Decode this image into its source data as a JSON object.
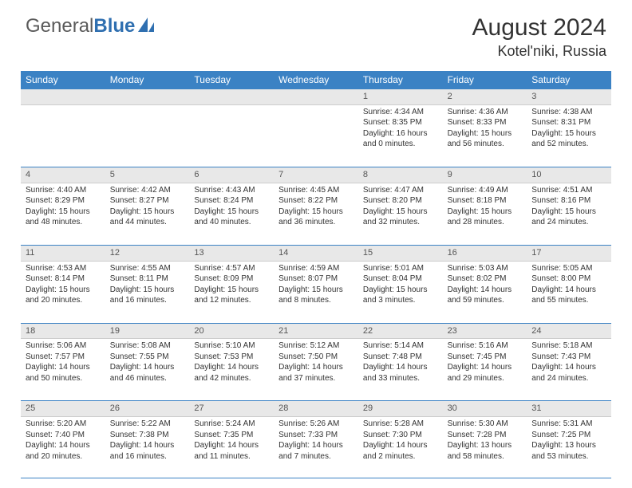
{
  "logo": {
    "general": "General",
    "blue": "Blue"
  },
  "title": "August 2024",
  "location": "Kotel'niki, Russia",
  "colors": {
    "header_bg": "#3b82c4",
    "daynum_bg": "#e8e8e8",
    "rule": "#3b82c4",
    "text": "#333333"
  },
  "day_names": [
    "Sunday",
    "Monday",
    "Tuesday",
    "Wednesday",
    "Thursday",
    "Friday",
    "Saturday"
  ],
  "weeks": [
    {
      "nums": [
        "",
        "",
        "",
        "",
        "1",
        "2",
        "3"
      ],
      "cells": [
        null,
        null,
        null,
        null,
        {
          "sunrise": "Sunrise: 4:34 AM",
          "sunset": "Sunset: 8:35 PM",
          "day1": "Daylight: 16 hours",
          "day2": "and 0 minutes."
        },
        {
          "sunrise": "Sunrise: 4:36 AM",
          "sunset": "Sunset: 8:33 PM",
          "day1": "Daylight: 15 hours",
          "day2": "and 56 minutes."
        },
        {
          "sunrise": "Sunrise: 4:38 AM",
          "sunset": "Sunset: 8:31 PM",
          "day1": "Daylight: 15 hours",
          "day2": "and 52 minutes."
        }
      ]
    },
    {
      "nums": [
        "4",
        "5",
        "6",
        "7",
        "8",
        "9",
        "10"
      ],
      "cells": [
        {
          "sunrise": "Sunrise: 4:40 AM",
          "sunset": "Sunset: 8:29 PM",
          "day1": "Daylight: 15 hours",
          "day2": "and 48 minutes."
        },
        {
          "sunrise": "Sunrise: 4:42 AM",
          "sunset": "Sunset: 8:27 PM",
          "day1": "Daylight: 15 hours",
          "day2": "and 44 minutes."
        },
        {
          "sunrise": "Sunrise: 4:43 AM",
          "sunset": "Sunset: 8:24 PM",
          "day1": "Daylight: 15 hours",
          "day2": "and 40 minutes."
        },
        {
          "sunrise": "Sunrise: 4:45 AM",
          "sunset": "Sunset: 8:22 PM",
          "day1": "Daylight: 15 hours",
          "day2": "and 36 minutes."
        },
        {
          "sunrise": "Sunrise: 4:47 AM",
          "sunset": "Sunset: 8:20 PM",
          "day1": "Daylight: 15 hours",
          "day2": "and 32 minutes."
        },
        {
          "sunrise": "Sunrise: 4:49 AM",
          "sunset": "Sunset: 8:18 PM",
          "day1": "Daylight: 15 hours",
          "day2": "and 28 minutes."
        },
        {
          "sunrise": "Sunrise: 4:51 AM",
          "sunset": "Sunset: 8:16 PM",
          "day1": "Daylight: 15 hours",
          "day2": "and 24 minutes."
        }
      ]
    },
    {
      "nums": [
        "11",
        "12",
        "13",
        "14",
        "15",
        "16",
        "17"
      ],
      "cells": [
        {
          "sunrise": "Sunrise: 4:53 AM",
          "sunset": "Sunset: 8:14 PM",
          "day1": "Daylight: 15 hours",
          "day2": "and 20 minutes."
        },
        {
          "sunrise": "Sunrise: 4:55 AM",
          "sunset": "Sunset: 8:11 PM",
          "day1": "Daylight: 15 hours",
          "day2": "and 16 minutes."
        },
        {
          "sunrise": "Sunrise: 4:57 AM",
          "sunset": "Sunset: 8:09 PM",
          "day1": "Daylight: 15 hours",
          "day2": "and 12 minutes."
        },
        {
          "sunrise": "Sunrise: 4:59 AM",
          "sunset": "Sunset: 8:07 PM",
          "day1": "Daylight: 15 hours",
          "day2": "and 8 minutes."
        },
        {
          "sunrise": "Sunrise: 5:01 AM",
          "sunset": "Sunset: 8:04 PM",
          "day1": "Daylight: 15 hours",
          "day2": "and 3 minutes."
        },
        {
          "sunrise": "Sunrise: 5:03 AM",
          "sunset": "Sunset: 8:02 PM",
          "day1": "Daylight: 14 hours",
          "day2": "and 59 minutes."
        },
        {
          "sunrise": "Sunrise: 5:05 AM",
          "sunset": "Sunset: 8:00 PM",
          "day1": "Daylight: 14 hours",
          "day2": "and 55 minutes."
        }
      ]
    },
    {
      "nums": [
        "18",
        "19",
        "20",
        "21",
        "22",
        "23",
        "24"
      ],
      "cells": [
        {
          "sunrise": "Sunrise: 5:06 AM",
          "sunset": "Sunset: 7:57 PM",
          "day1": "Daylight: 14 hours",
          "day2": "and 50 minutes."
        },
        {
          "sunrise": "Sunrise: 5:08 AM",
          "sunset": "Sunset: 7:55 PM",
          "day1": "Daylight: 14 hours",
          "day2": "and 46 minutes."
        },
        {
          "sunrise": "Sunrise: 5:10 AM",
          "sunset": "Sunset: 7:53 PM",
          "day1": "Daylight: 14 hours",
          "day2": "and 42 minutes."
        },
        {
          "sunrise": "Sunrise: 5:12 AM",
          "sunset": "Sunset: 7:50 PM",
          "day1": "Daylight: 14 hours",
          "day2": "and 37 minutes."
        },
        {
          "sunrise": "Sunrise: 5:14 AM",
          "sunset": "Sunset: 7:48 PM",
          "day1": "Daylight: 14 hours",
          "day2": "and 33 minutes."
        },
        {
          "sunrise": "Sunrise: 5:16 AM",
          "sunset": "Sunset: 7:45 PM",
          "day1": "Daylight: 14 hours",
          "day2": "and 29 minutes."
        },
        {
          "sunrise": "Sunrise: 5:18 AM",
          "sunset": "Sunset: 7:43 PM",
          "day1": "Daylight: 14 hours",
          "day2": "and 24 minutes."
        }
      ]
    },
    {
      "nums": [
        "25",
        "26",
        "27",
        "28",
        "29",
        "30",
        "31"
      ],
      "cells": [
        {
          "sunrise": "Sunrise: 5:20 AM",
          "sunset": "Sunset: 7:40 PM",
          "day1": "Daylight: 14 hours",
          "day2": "and 20 minutes."
        },
        {
          "sunrise": "Sunrise: 5:22 AM",
          "sunset": "Sunset: 7:38 PM",
          "day1": "Daylight: 14 hours",
          "day2": "and 16 minutes."
        },
        {
          "sunrise": "Sunrise: 5:24 AM",
          "sunset": "Sunset: 7:35 PM",
          "day1": "Daylight: 14 hours",
          "day2": "and 11 minutes."
        },
        {
          "sunrise": "Sunrise: 5:26 AM",
          "sunset": "Sunset: 7:33 PM",
          "day1": "Daylight: 14 hours",
          "day2": "and 7 minutes."
        },
        {
          "sunrise": "Sunrise: 5:28 AM",
          "sunset": "Sunset: 7:30 PM",
          "day1": "Daylight: 14 hours",
          "day2": "and 2 minutes."
        },
        {
          "sunrise": "Sunrise: 5:30 AM",
          "sunset": "Sunset: 7:28 PM",
          "day1": "Daylight: 13 hours",
          "day2": "and 58 minutes."
        },
        {
          "sunrise": "Sunrise: 5:31 AM",
          "sunset": "Sunset: 7:25 PM",
          "day1": "Daylight: 13 hours",
          "day2": "and 53 minutes."
        }
      ]
    }
  ]
}
